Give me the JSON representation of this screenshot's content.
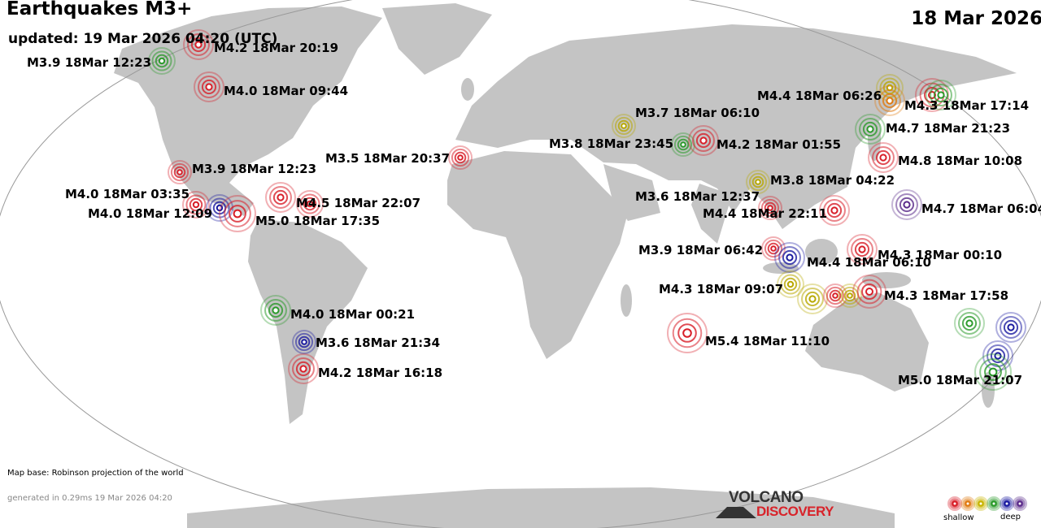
{
  "header": {
    "title": "Earthquakes M3+",
    "updated": "updated: 19 Mar 2026 04:20 (UTC)",
    "date": "18 Mar 2026"
  },
  "footer": {
    "map_base": "Map base: Robinson projection of the world",
    "generated": "generated in 0.29ms 19 Mar 2026 04:20"
  },
  "logo": {
    "line1": "VOLCANO",
    "line2": "DISCOVERY"
  },
  "legend": {
    "shallow": "shallow",
    "deep": "deep",
    "depth_colors": [
      "#d81e28",
      "#e07a10",
      "#c8b400",
      "#2a9a2a",
      "#1a1aa0",
      "#5a2a8a"
    ]
  },
  "colors": {
    "land": "#c4c4c4",
    "ocean": "#ffffff",
    "outline": "#999999"
  },
  "quakes": [
    {
      "label": "M3.9 18Mar 12:23",
      "depth": "green"
    },
    {
      "label": "M4.2 18Mar 20:19",
      "depth": "red"
    },
    {
      "label": "M4.0 18Mar 09:44",
      "depth": "red"
    },
    {
      "label": "M3.9 18Mar 12:23",
      "depth": "red"
    },
    {
      "label": "M4.0 18Mar 03:35",
      "depth": "red"
    },
    {
      "label": "M4.0 18Mar 12:09",
      "depth": "blue"
    },
    {
      "label": "M5.0 18Mar 17:35",
      "depth": "red"
    },
    {
      "label": "M4.5 18Mar 22:07",
      "depth": "red"
    },
    {
      "label": "M3.5 18Mar 20:37",
      "depth": "red"
    },
    {
      "label": "M4.0 18Mar 00:21",
      "depth": "green"
    },
    {
      "label": "M3.6 18Mar 21:34",
      "depth": "blue"
    },
    {
      "label": "M4.2 18Mar 16:18",
      "depth": "red"
    },
    {
      "label": "M3.7 18Mar 06:10",
      "depth": "yellow"
    },
    {
      "label": "M3.8 18Mar 23:45",
      "depth": "green"
    },
    {
      "label": "M4.2 18Mar 01:55",
      "depth": "red"
    },
    {
      "label": "M4.4 18Mar 06:26",
      "depth": "orange"
    },
    {
      "label": "M4.3 18Mar 17:14",
      "depth": "red"
    },
    {
      "label": "M4.7 18Mar 21:23",
      "depth": "green"
    },
    {
      "label": "M4.8 18Mar 10:08",
      "depth": "red"
    },
    {
      "label": "M3.8 18Mar 04:22",
      "depth": "yellow"
    },
    {
      "label": "M3.6 18Mar 12:37",
      "depth": "red"
    },
    {
      "label": "M4.4 18Mar 22:11",
      "depth": "red"
    },
    {
      "label": "M4.7 18Mar 06:04",
      "depth": "purple"
    },
    {
      "label": "M3.9 18Mar 06:42",
      "depth": "red"
    },
    {
      "label": "M4.4 18Mar 06:10",
      "depth": "blue"
    },
    {
      "label": "M4.3 18Mar 00:10",
      "depth": "red"
    },
    {
      "label": "M4.3 18Mar 09:07",
      "depth": "yellow"
    },
    {
      "label": "M4.3 18Mar 17:58",
      "depth": "red"
    },
    {
      "label": "M5.4 18Mar 11:10",
      "depth": "red"
    },
    {
      "label": "M5.0 18Mar 21:07",
      "depth": "green"
    }
  ]
}
